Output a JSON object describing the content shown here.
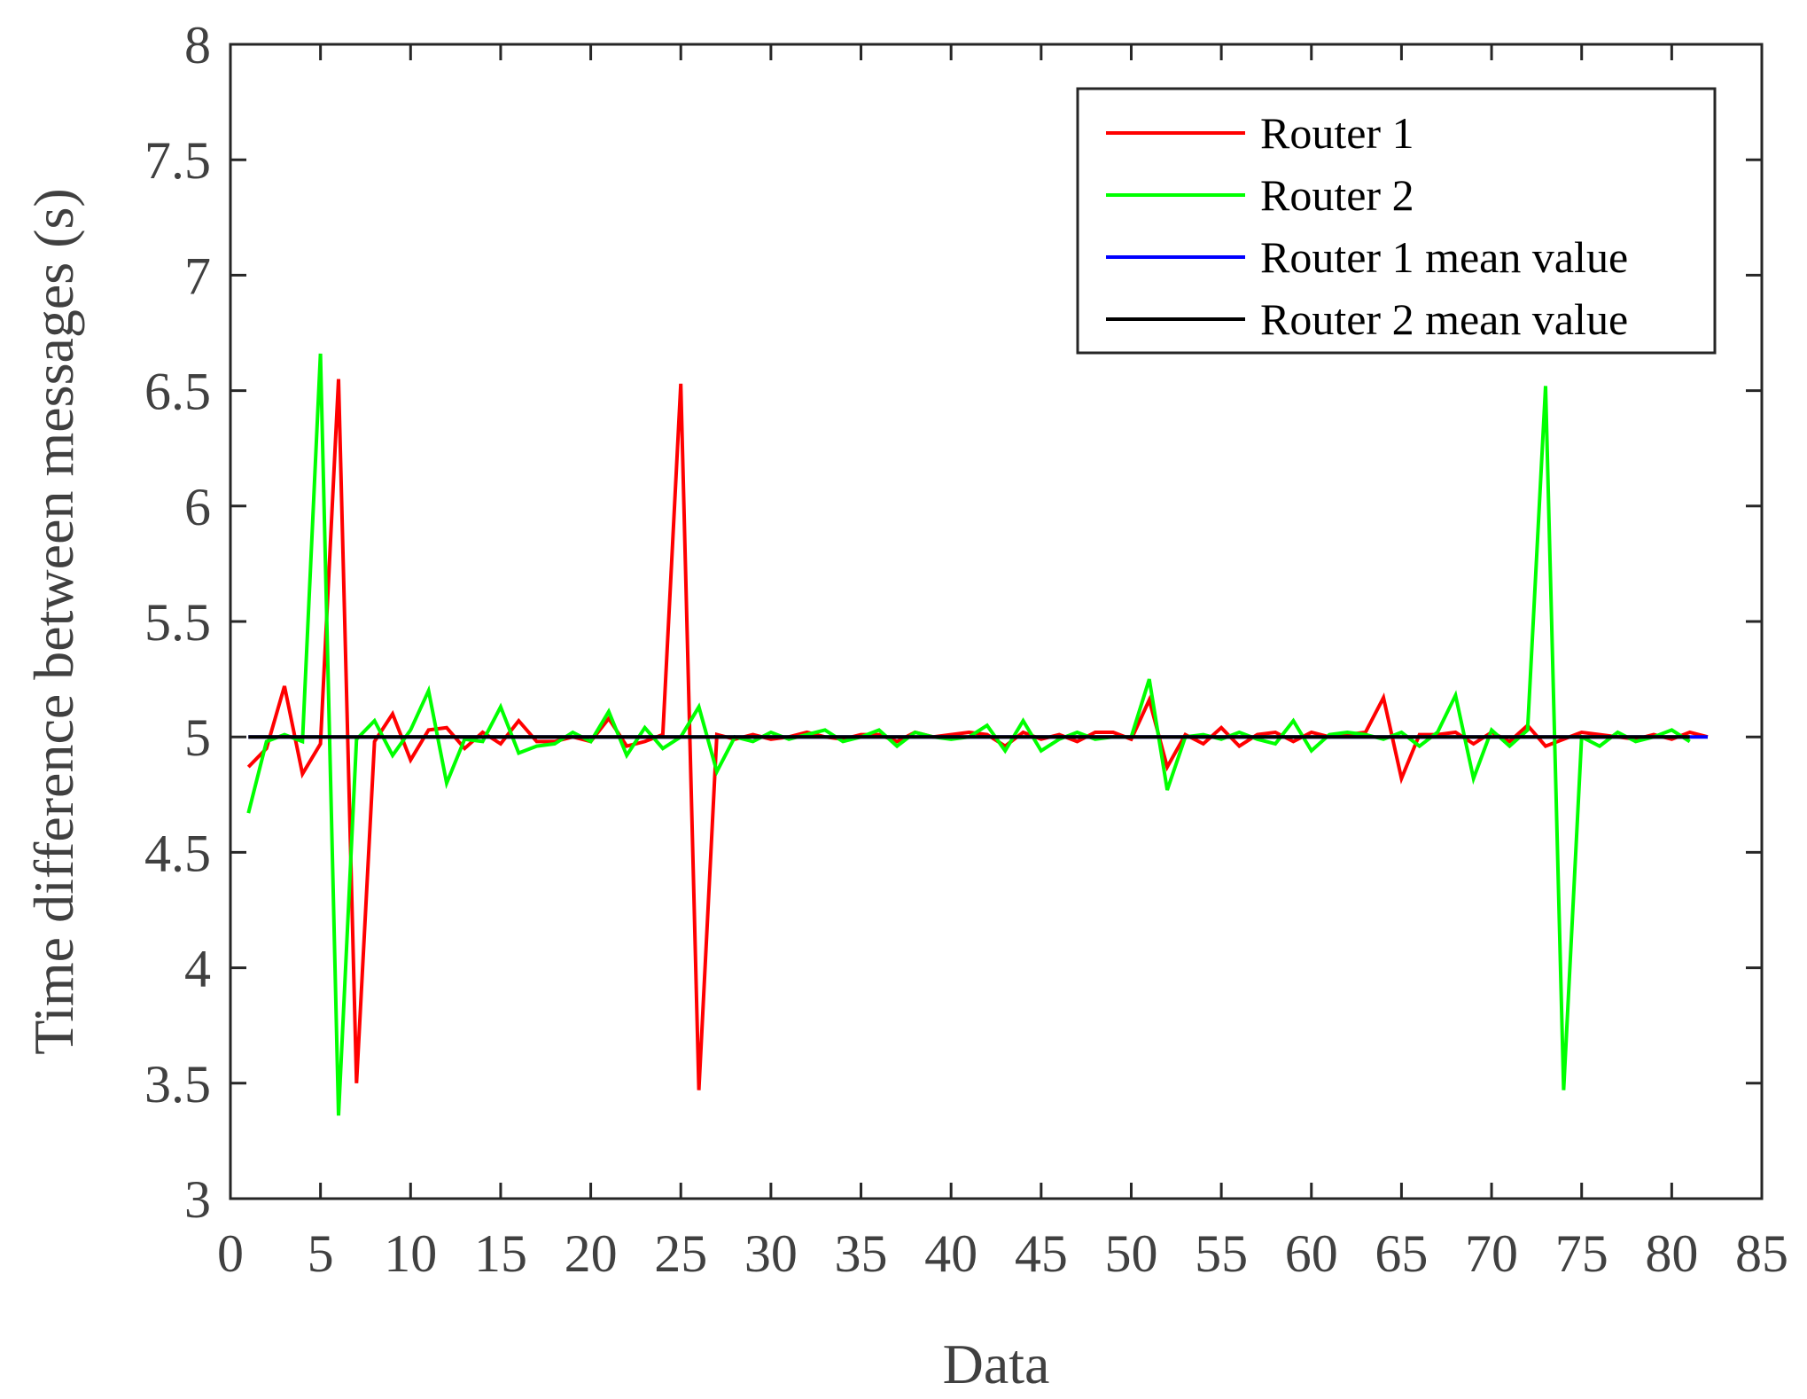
{
  "chart_data": {
    "type": "line",
    "xlabel": "Data",
    "ylabel": "Time difference between messages (s)",
    "xlim": [
      0,
      85
    ],
    "ylim": [
      3,
      8
    ],
    "xticks": [
      "0",
      "5",
      "10",
      "15",
      "20",
      "25",
      "30",
      "35",
      "40",
      "45",
      "50",
      "55",
      "60",
      "65",
      "70",
      "75",
      "80",
      "85"
    ],
    "yticks": [
      "3",
      "3.5",
      "4",
      "4.5",
      "5",
      "5.5",
      "6",
      "6.5",
      "7",
      "7.5",
      "8"
    ],
    "grid": false,
    "legend_position": "top-right",
    "series": [
      {
        "name": "Router 1",
        "color": "#ff0000",
        "x": [
          1,
          2,
          3,
          4,
          5,
          6,
          7,
          8,
          9,
          10,
          11,
          12,
          13,
          14,
          15,
          16,
          17,
          18,
          19,
          20,
          21,
          22,
          23,
          24,
          25,
          26,
          27,
          28,
          29,
          30,
          31,
          32,
          33,
          34,
          35,
          36,
          37,
          38,
          39,
          40,
          41,
          42,
          43,
          44,
          45,
          46,
          47,
          48,
          49,
          50,
          51,
          52,
          53,
          54,
          55,
          56,
          57,
          58,
          59,
          60,
          61,
          62,
          63,
          64,
          65,
          66,
          67,
          68,
          69,
          70,
          71,
          72,
          73,
          74,
          75,
          76,
          77,
          78,
          79,
          80,
          81,
          82
        ],
        "values": [
          4.87,
          4.95,
          5.22,
          4.84,
          4.97,
          6.55,
          3.5,
          4.98,
          5.1,
          4.9,
          5.03,
          5.04,
          4.95,
          5.02,
          4.97,
          5.07,
          4.98,
          4.98,
          5.0,
          4.98,
          5.08,
          4.96,
          4.98,
          5.01,
          6.53,
          3.47,
          5.01,
          4.99,
          5.01,
          4.99,
          5.0,
          5.02,
          5.0,
          4.99,
          5.01,
          5.01,
          4.98,
          5.02,
          5.0,
          5.01,
          5.02,
          5.01,
          4.96,
          5.02,
          4.99,
          5.01,
          4.98,
          5.02,
          5.02,
          4.99,
          5.16,
          4.87,
          5.01,
          4.97,
          5.04,
          4.96,
          5.01,
          5.02,
          4.98,
          5.02,
          5.0,
          5.01,
          5.02,
          5.17,
          4.82,
          5.01,
          5.01,
          5.02,
          4.97,
          5.02,
          4.98,
          5.05,
          4.96,
          4.99,
          5.02,
          5.01,
          5.0,
          4.99,
          5.01,
          4.99,
          5.02,
          5.0
        ]
      },
      {
        "name": "Router 2",
        "color": "#00ff00",
        "x": [
          1,
          2,
          3,
          4,
          5,
          6,
          7,
          8,
          9,
          10,
          11,
          12,
          13,
          14,
          15,
          16,
          17,
          18,
          19,
          20,
          21,
          22,
          23,
          24,
          25,
          26,
          27,
          28,
          29,
          30,
          31,
          32,
          33,
          34,
          35,
          36,
          37,
          38,
          39,
          40,
          41,
          42,
          43,
          44,
          45,
          46,
          47,
          48,
          49,
          50,
          51,
          52,
          53,
          54,
          55,
          56,
          57,
          58,
          59,
          60,
          61,
          62,
          63,
          64,
          65,
          66,
          67,
          68,
          69,
          70,
          71,
          72,
          73,
          74,
          75,
          76,
          77,
          78,
          79,
          80,
          81
        ],
        "values": [
          4.67,
          4.98,
          5.01,
          4.98,
          6.66,
          3.36,
          4.99,
          5.07,
          4.92,
          5.03,
          5.2,
          4.8,
          4.99,
          4.98,
          5.13,
          4.93,
          4.96,
          4.97,
          5.02,
          4.98,
          5.11,
          4.92,
          5.04,
          4.95,
          5.0,
          5.13,
          4.85,
          5.0,
          4.98,
          5.02,
          4.99,
          5.01,
          5.03,
          4.98,
          5.0,
          5.03,
          4.96,
          5.02,
          5.0,
          4.99,
          5.0,
          5.05,
          4.94,
          5.07,
          4.94,
          4.99,
          5.02,
          4.99,
          5.0,
          5.0,
          5.25,
          4.77,
          5.0,
          5.01,
          4.99,
          5.02,
          4.99,
          4.97,
          5.07,
          4.94,
          5.01,
          5.02,
          5.01,
          4.99,
          5.02,
          4.96,
          5.02,
          5.18,
          4.82,
          5.03,
          4.96,
          5.03,
          6.52,
          3.47,
          5.0,
          4.96,
          5.02,
          4.98,
          5.0,
          5.03,
          4.98
        ]
      },
      {
        "name": "Router 1 mean value",
        "color": "#0000ff",
        "x": [
          1,
          82
        ],
        "values": [
          5.0,
          5.0
        ]
      },
      {
        "name": "Router 2 mean value",
        "color": "#000000",
        "x": [
          1,
          81
        ],
        "values": [
          5.0,
          5.0
        ]
      }
    ]
  }
}
